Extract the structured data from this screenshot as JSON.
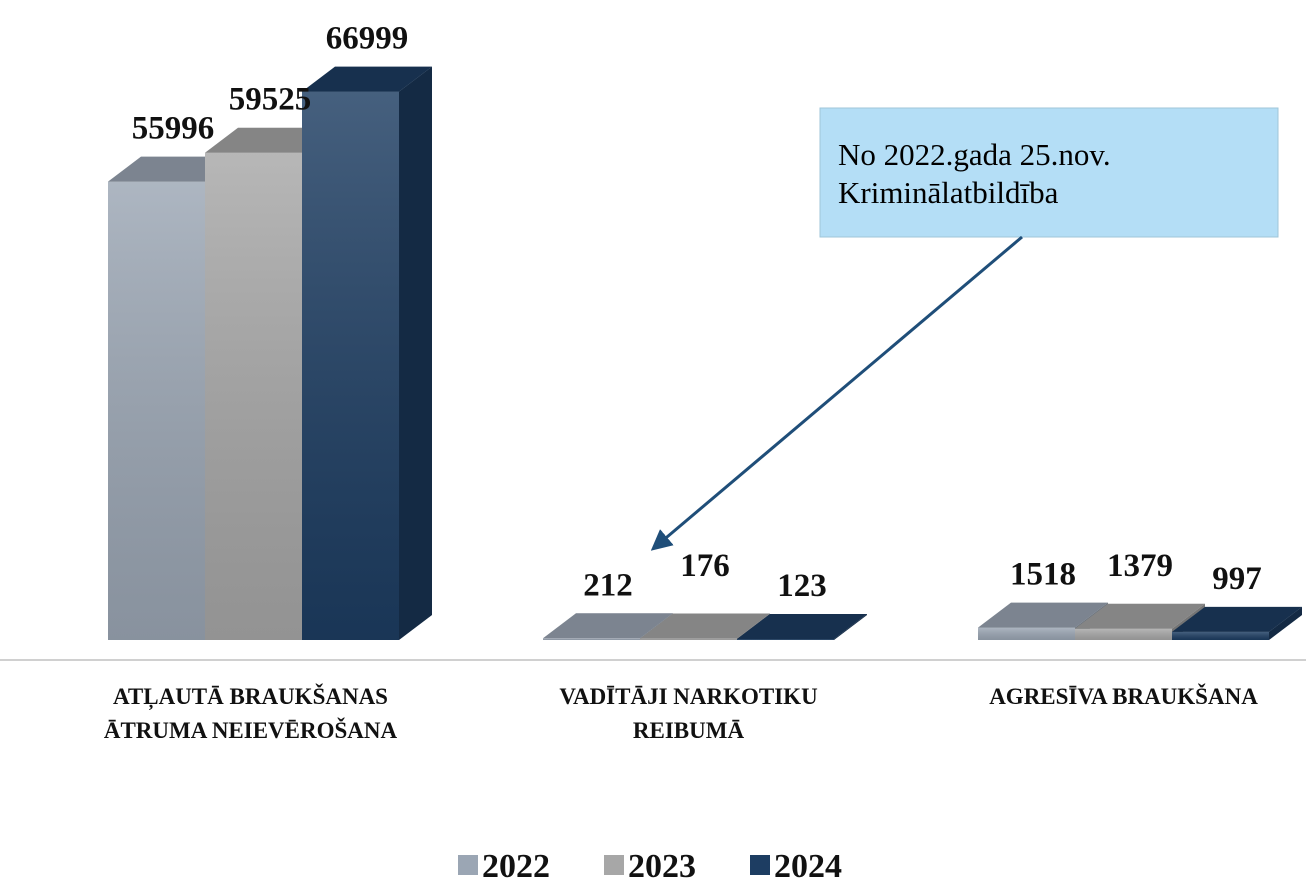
{
  "chart_data": {
    "type": "bar3d",
    "categories": [
      "ATĻAUTĀ BRAUKŠANAS ĀTRUMA NEIEVĒROŠANA",
      "VADĪTĀJI NARKOTIKU REIBUMĀ",
      "AGRESĪVA BRAUKŠANA"
    ],
    "series": [
      {
        "name": "2022",
        "color": "#9ba6b4",
        "values": [
          55996,
          212,
          1518
        ]
      },
      {
        "name": "2023",
        "color": "#a7a7a7",
        "values": [
          59525,
          176,
          1379
        ]
      },
      {
        "name": "2024",
        "color": "#1d3d62",
        "values": [
          66999,
          123,
          997
        ]
      }
    ],
    "ylim": [
      0,
      70000
    ],
    "annotation": [
      "No 2022.gada 25.nov.",
      "Kriminālatbildība"
    ],
    "legend": "bottom"
  }
}
